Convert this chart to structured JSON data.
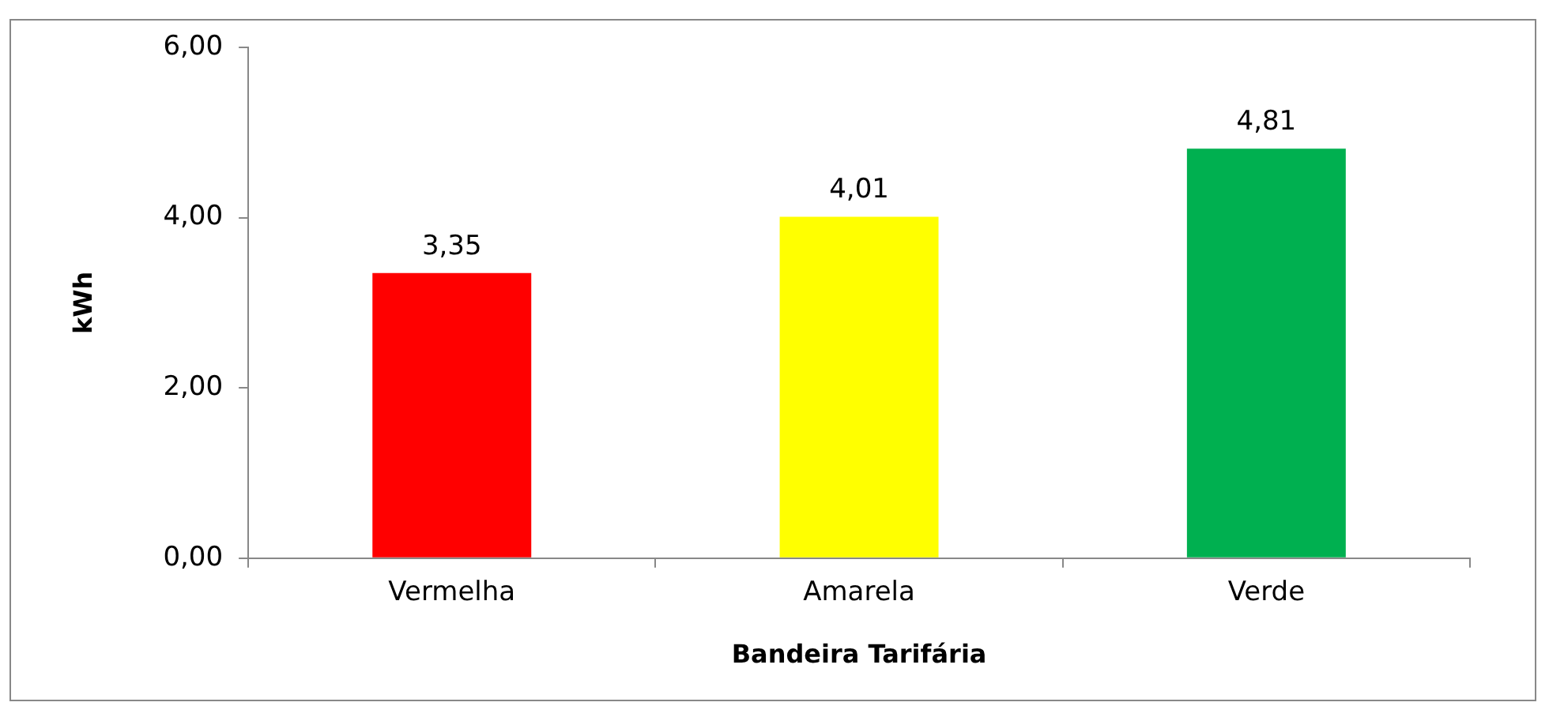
{
  "chart_data": {
    "type": "bar",
    "xlabel": "Bandeira Tarifária",
    "ylabel": "kWh",
    "categories": [
      "Vermelha",
      "Amarela",
      "Verde"
    ],
    "values": [
      3.35,
      4.01,
      4.81
    ],
    "colors": [
      "#ff0000",
      "#ffff00",
      "#00b050"
    ],
    "value_labels": [
      "3,35",
      "4,01",
      "4,81"
    ],
    "ylim": [
      0,
      6
    ],
    "yticks": [
      {
        "value": 0,
        "label": "0,00"
      },
      {
        "value": 2,
        "label": "2,00"
      },
      {
        "value": 4,
        "label": "4,00"
      },
      {
        "value": 6,
        "label": "6,00"
      }
    ],
    "grid": false,
    "legend": false
  }
}
